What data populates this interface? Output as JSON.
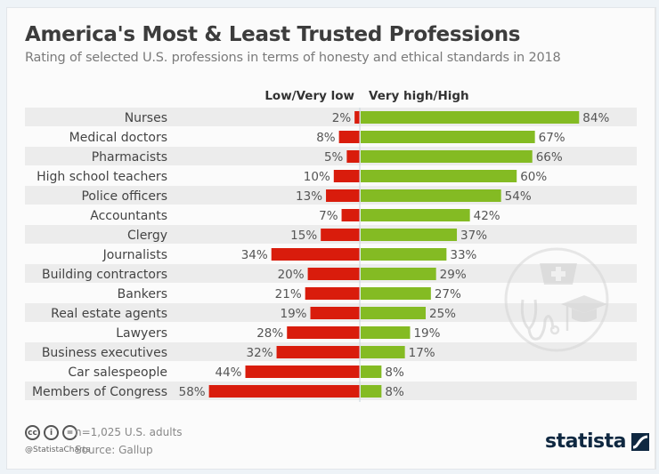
{
  "header": {
    "title": "America's Most & Least Trusted Professions",
    "subtitle": "Rating of selected U.S. professions in terms of honesty and ethical standards in 2018"
  },
  "chart_data": {
    "type": "bar",
    "orientation": "horizontal-diverging",
    "title": "America's Most & Least Trusted Professions",
    "subtitle": "Rating of selected U.S. professions in terms of honesty and ethical standards in 2018",
    "categories": [
      "Nurses",
      "Medical doctors",
      "Pharmacists",
      "High school teachers",
      "Police officers",
      "Accountants",
      "Clergy",
      "Journalists",
      "Building contractors",
      "Bankers",
      "Real estate agents",
      "Lawyers",
      "Business executives",
      "Car salespeople",
      "Members of Congress"
    ],
    "series": [
      {
        "name": "Low/Very low",
        "color": "#d91c0c",
        "direction": "left",
        "values": [
          2,
          8,
          5,
          10,
          13,
          7,
          15,
          34,
          20,
          21,
          19,
          28,
          32,
          44,
          58
        ]
      },
      {
        "name": "Very high/High",
        "color": "#84bb23",
        "direction": "right",
        "values": [
          84,
          67,
          66,
          60,
          54,
          42,
          37,
          33,
          29,
          27,
          25,
          19,
          17,
          8,
          8
        ]
      }
    ],
    "value_suffix": "%",
    "xlabel": "",
    "ylabel": "",
    "grid": false,
    "legend": "top-center column headers"
  },
  "legend": {
    "low": "Low/Very low",
    "high": "Very high/High"
  },
  "footer": {
    "note": "n=1,025 U.S. adults",
    "source": "Source: Gallup",
    "handle": "@StatistaCharts",
    "cc_icons": [
      "cc",
      "i",
      "="
    ],
    "brand": "statista"
  },
  "colors": {
    "low": "#d91c0c",
    "high": "#84bb23",
    "stripe": "#ececec",
    "text": "#444444"
  }
}
